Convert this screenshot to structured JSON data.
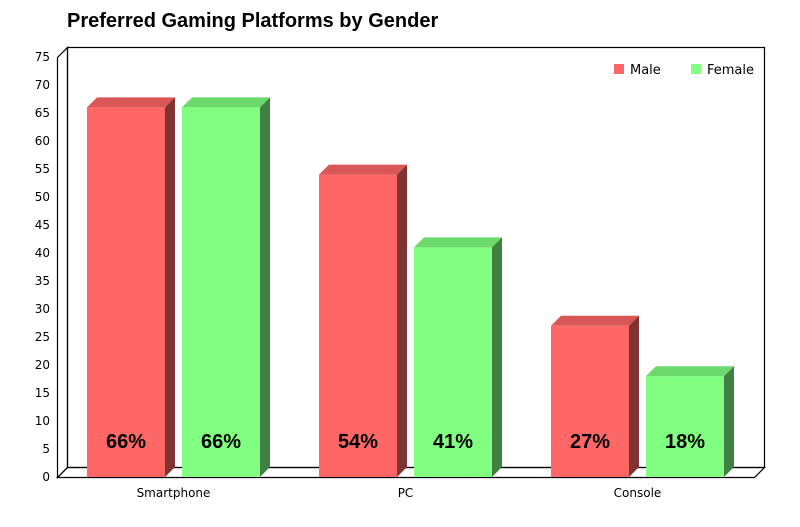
{
  "title": "Preferred Gaming Platforms by Gender",
  "legend": {
    "items": [
      {
        "label": "Male",
        "color": "#ff6666"
      },
      {
        "label": "Female",
        "color": "#80ff80"
      }
    ]
  },
  "y_ticks": [
    "0",
    "5",
    "10",
    "15",
    "20",
    "25",
    "30",
    "35",
    "40",
    "45",
    "50",
    "55",
    "60",
    "65",
    "70",
    "75"
  ],
  "categories": [
    "Smartphone",
    "PC",
    "Console"
  ],
  "value_labels": {
    "male": [
      "66%",
      "54%",
      "27%"
    ],
    "female": [
      "66%",
      "41%",
      "18%"
    ]
  },
  "colors": {
    "male_front": "#ff6666",
    "male_top": "#d95757",
    "male_side": "#803333",
    "female_front": "#80ff80",
    "female_top": "#6cd96c",
    "female_side": "#408040"
  },
  "chart_data": {
    "type": "bar",
    "title": "Preferred Gaming Platforms by Gender",
    "categories": [
      "Smartphone",
      "PC",
      "Console"
    ],
    "series": [
      {
        "name": "Male",
        "values": [
          66,
          54,
          27
        ],
        "color": "#ff6666"
      },
      {
        "name": "Female",
        "values": [
          66,
          41,
          18
        ],
        "color": "#80ff80"
      }
    ],
    "xlabel": "",
    "ylabel": "",
    "ylim": [
      0,
      75
    ],
    "yticks_step": 5,
    "grid": false,
    "legend_position": "top-right",
    "style": "3d-bar",
    "data_labels": true
  }
}
